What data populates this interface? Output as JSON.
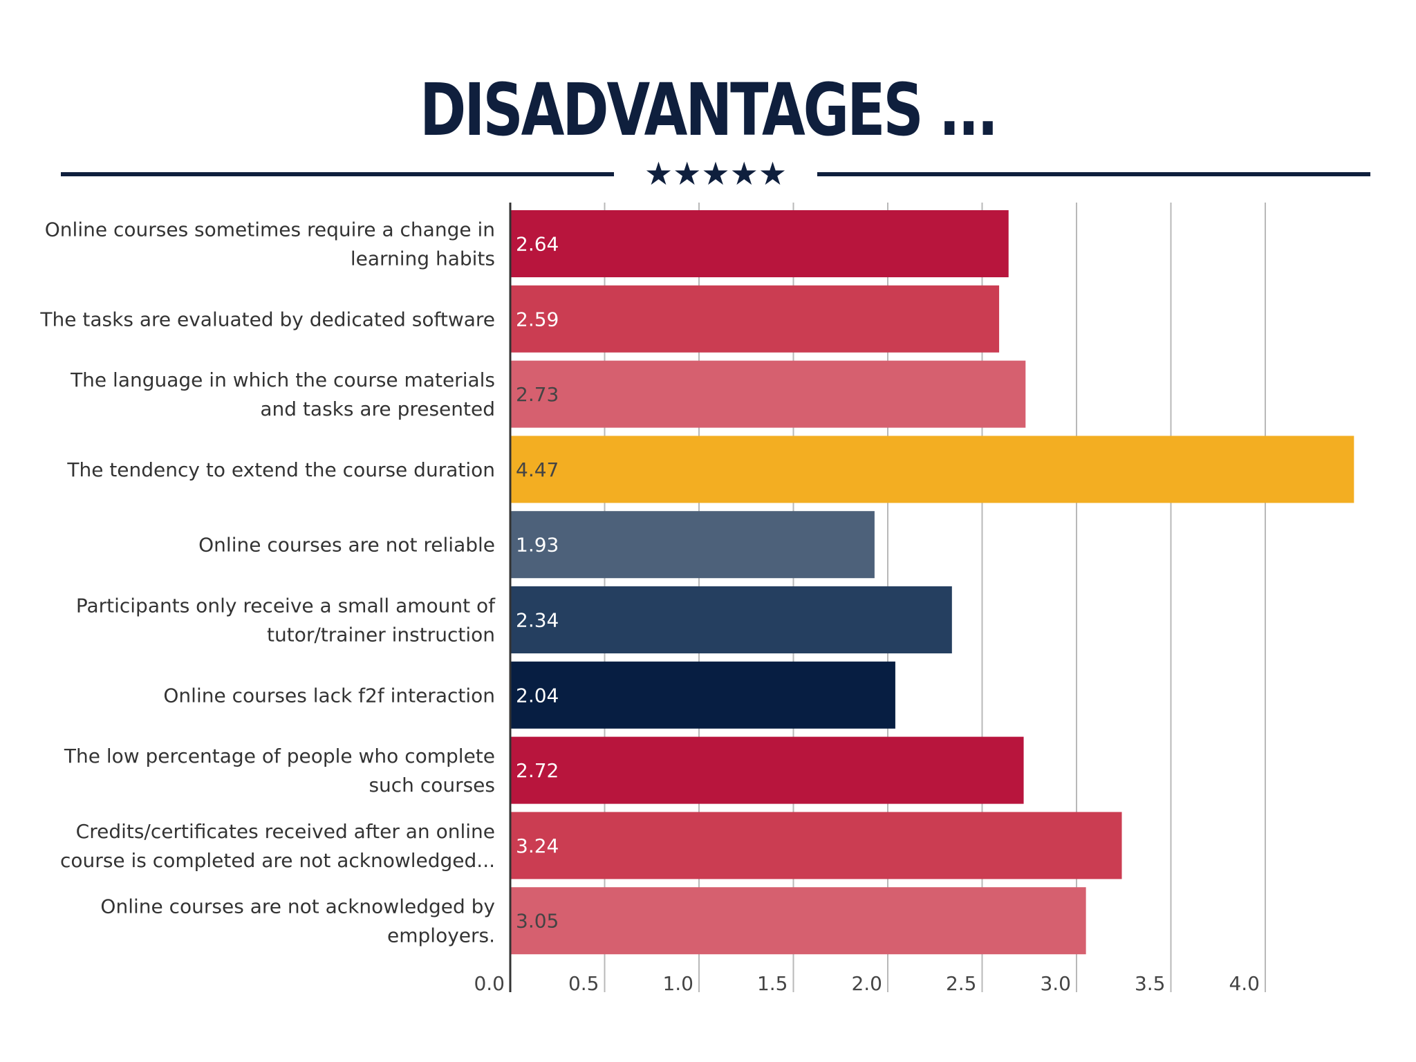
{
  "header": {
    "title": "DISADVANTAGES ...",
    "stars": "★★★★★"
  },
  "colors": {
    "navy": "#0f1f3d",
    "grid": "#b8b8b8",
    "axis": "#333333"
  },
  "chart_data": {
    "type": "bar",
    "orientation": "horizontal",
    "title": "DISADVANTAGES ...",
    "xlabel": "",
    "ylabel": "",
    "xlim": [
      0,
      4.5
    ],
    "xticks": [
      0.0,
      0.5,
      1.0,
      1.5,
      2.0,
      2.5,
      3.0,
      3.5,
      4.0
    ],
    "xtick_labels": [
      "0.0",
      "0.5",
      "1.0",
      "1.5",
      "2.0",
      "2.5",
      "3.0",
      "3.5",
      "4.0"
    ],
    "grid": true,
    "categories": [
      [
        "Online courses sometimes require a change in",
        "learning habits"
      ],
      [
        "The tasks are evaluated by dedicated software"
      ],
      [
        "The language in which the course materials",
        "and tasks are presented"
      ],
      [
        "The tendency to extend the course duration"
      ],
      [
        "Online courses are not reliable"
      ],
      [
        "Participants only receive a small amount of",
        "tutor/trainer instruction"
      ],
      [
        "Online courses lack f2f interaction"
      ],
      [
        "The low percentage of people who complete",
        "such courses"
      ],
      [
        "Credits/certificates received after an online",
        "course is completed are not acknowledged..."
      ],
      [
        "Online courses are not acknowledged by",
        "employers."
      ]
    ],
    "values": [
      2.64,
      2.59,
      2.73,
      4.47,
      1.93,
      2.34,
      2.04,
      2.72,
      3.24,
      3.05
    ],
    "value_labels": [
      "2.64",
      "2.59",
      "2.73",
      "4.47",
      "1.93",
      "2.34",
      "2.04",
      "2.72",
      "3.24",
      "3.05"
    ],
    "bar_colors": [
      "#b8153d",
      "#cb3d52",
      "#d6606f",
      "#f3ae22",
      "#4d617a",
      "#253f60",
      "#071e42",
      "#b8153d",
      "#cb3d52",
      "#d6606f"
    ],
    "label_colors": [
      "#ffffff",
      "#ffffff",
      "#444444",
      "#444444",
      "#ffffff",
      "#ffffff",
      "#ffffff",
      "#ffffff",
      "#ffffff",
      "#444444"
    ]
  }
}
